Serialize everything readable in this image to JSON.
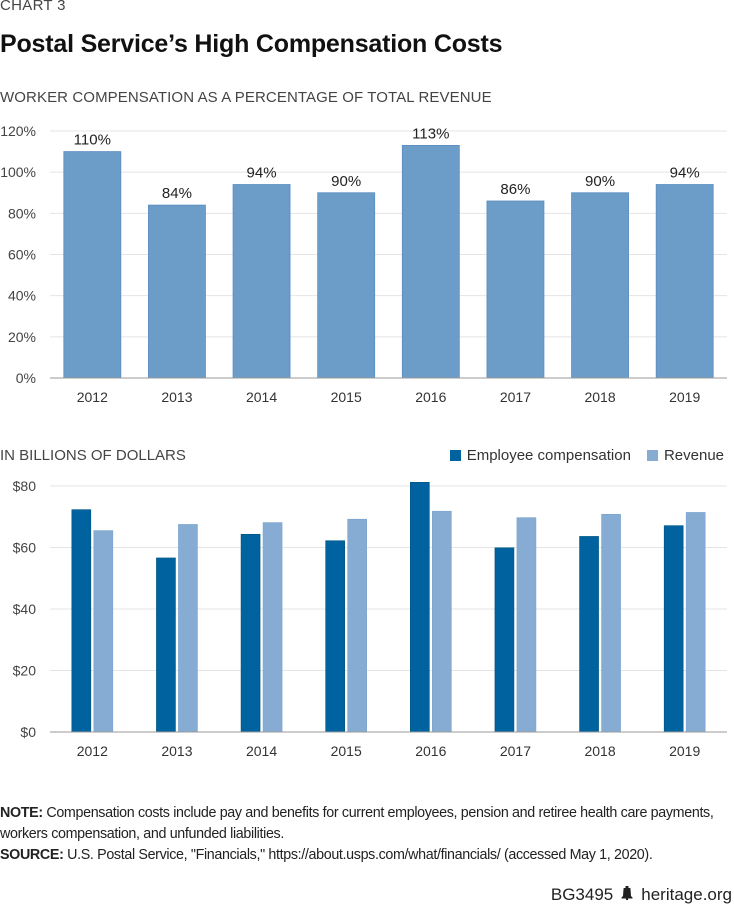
{
  "kicker": "CHART 3",
  "title": "Postal Service’s High Compensation Costs",
  "chart_data": [
    {
      "type": "bar",
      "title": "WORKER COMPENSATION AS A PERCENTAGE OF TOTAL REVENUE",
      "xlabel": "",
      "ylabel": "",
      "categories": [
        "2012",
        "2013",
        "2014",
        "2015",
        "2016",
        "2017",
        "2018",
        "2019"
      ],
      "values": [
        110,
        84,
        94,
        90,
        113,
        86,
        90,
        94
      ],
      "data_labels": [
        "110%",
        "84%",
        "94%",
        "90%",
        "113%",
        "86%",
        "90%",
        "94%"
      ],
      "ylim": [
        0,
        120
      ],
      "yticks": [
        0,
        20,
        40,
        60,
        80,
        100,
        120
      ],
      "ytick_labels": [
        "0%",
        "20%",
        "40%",
        "60%",
        "80%",
        "100%",
        "120%"
      ],
      "grid": true,
      "color": "#6b9dc8"
    },
    {
      "type": "bar",
      "title": "IN BILLIONS OF DOLLARS",
      "xlabel": "",
      "ylabel": "",
      "categories": [
        "2012",
        "2013",
        "2014",
        "2015",
        "2016",
        "2017",
        "2018",
        "2019"
      ],
      "series": [
        {
          "name": "Employee compensation",
          "values": [
            72.3,
            56.6,
            64.3,
            62.2,
            81.2,
            59.9,
            63.6,
            67.1
          ],
          "color": "#00629f"
        },
        {
          "name": "Revenue",
          "values": [
            65.5,
            67.5,
            68.1,
            69.2,
            71.8,
            69.7,
            70.8,
            71.4
          ],
          "color": "#86acd4"
        }
      ],
      "ylim": [
        0,
        80
      ],
      "yticks": [
        0,
        20,
        40,
        60,
        80
      ],
      "ytick_labels": [
        "$0",
        "$20",
        "$40",
        "$60",
        "$80"
      ],
      "grid": true,
      "legend": "top-right"
    }
  ],
  "notes": {
    "note_label": "NOTE:",
    "note_text": " Compensation costs include pay and benefits for current employees, pension and retiree health care payments, workers compensation, and unfunded liabilities.",
    "source_label": "SOURCE:",
    "source_text": " U.S. Postal Service, \"Financials,\" https://about.usps.com/what/financials/ (accessed May 1, 2020)."
  },
  "footer": {
    "code": "BG3495",
    "icon": "liberty-bell-icon",
    "site": "heritage.org"
  }
}
